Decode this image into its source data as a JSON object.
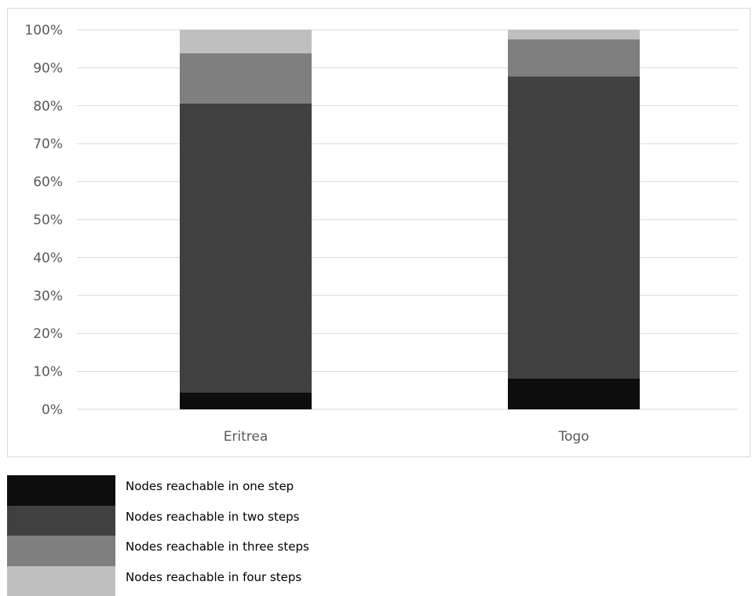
{
  "chart_data": {
    "type": "bar",
    "stacked": true,
    "percent_stacked": true,
    "categories": [
      "Eritrea",
      "Togo"
    ],
    "series": [
      {
        "name": "Nodes reachable in one step",
        "values": [
          4.5,
          8.2
        ],
        "color": "#0d0d0d"
      },
      {
        "name": "Nodes reachable in two steps",
        "values": [
          76.1,
          79.5
        ],
        "color": "#404040"
      },
      {
        "name": "Nodes reachable in three steps",
        "values": [
          13.2,
          9.8
        ],
        "color": "#7f7f7f"
      },
      {
        "name": "Nodes reachable in four steps",
        "values": [
          6.2,
          2.5
        ],
        "color": "#bfbfbf"
      }
    ],
    "ylim": [
      0,
      100
    ],
    "y_ticks": [
      "0%",
      "10%",
      "20%",
      "30%",
      "40%",
      "50%",
      "60%",
      "70%",
      "80%",
      "90%",
      "100%"
    ],
    "grid": true,
    "legend_position": "bottom-left",
    "gridline_color": "#d9d9d9"
  }
}
